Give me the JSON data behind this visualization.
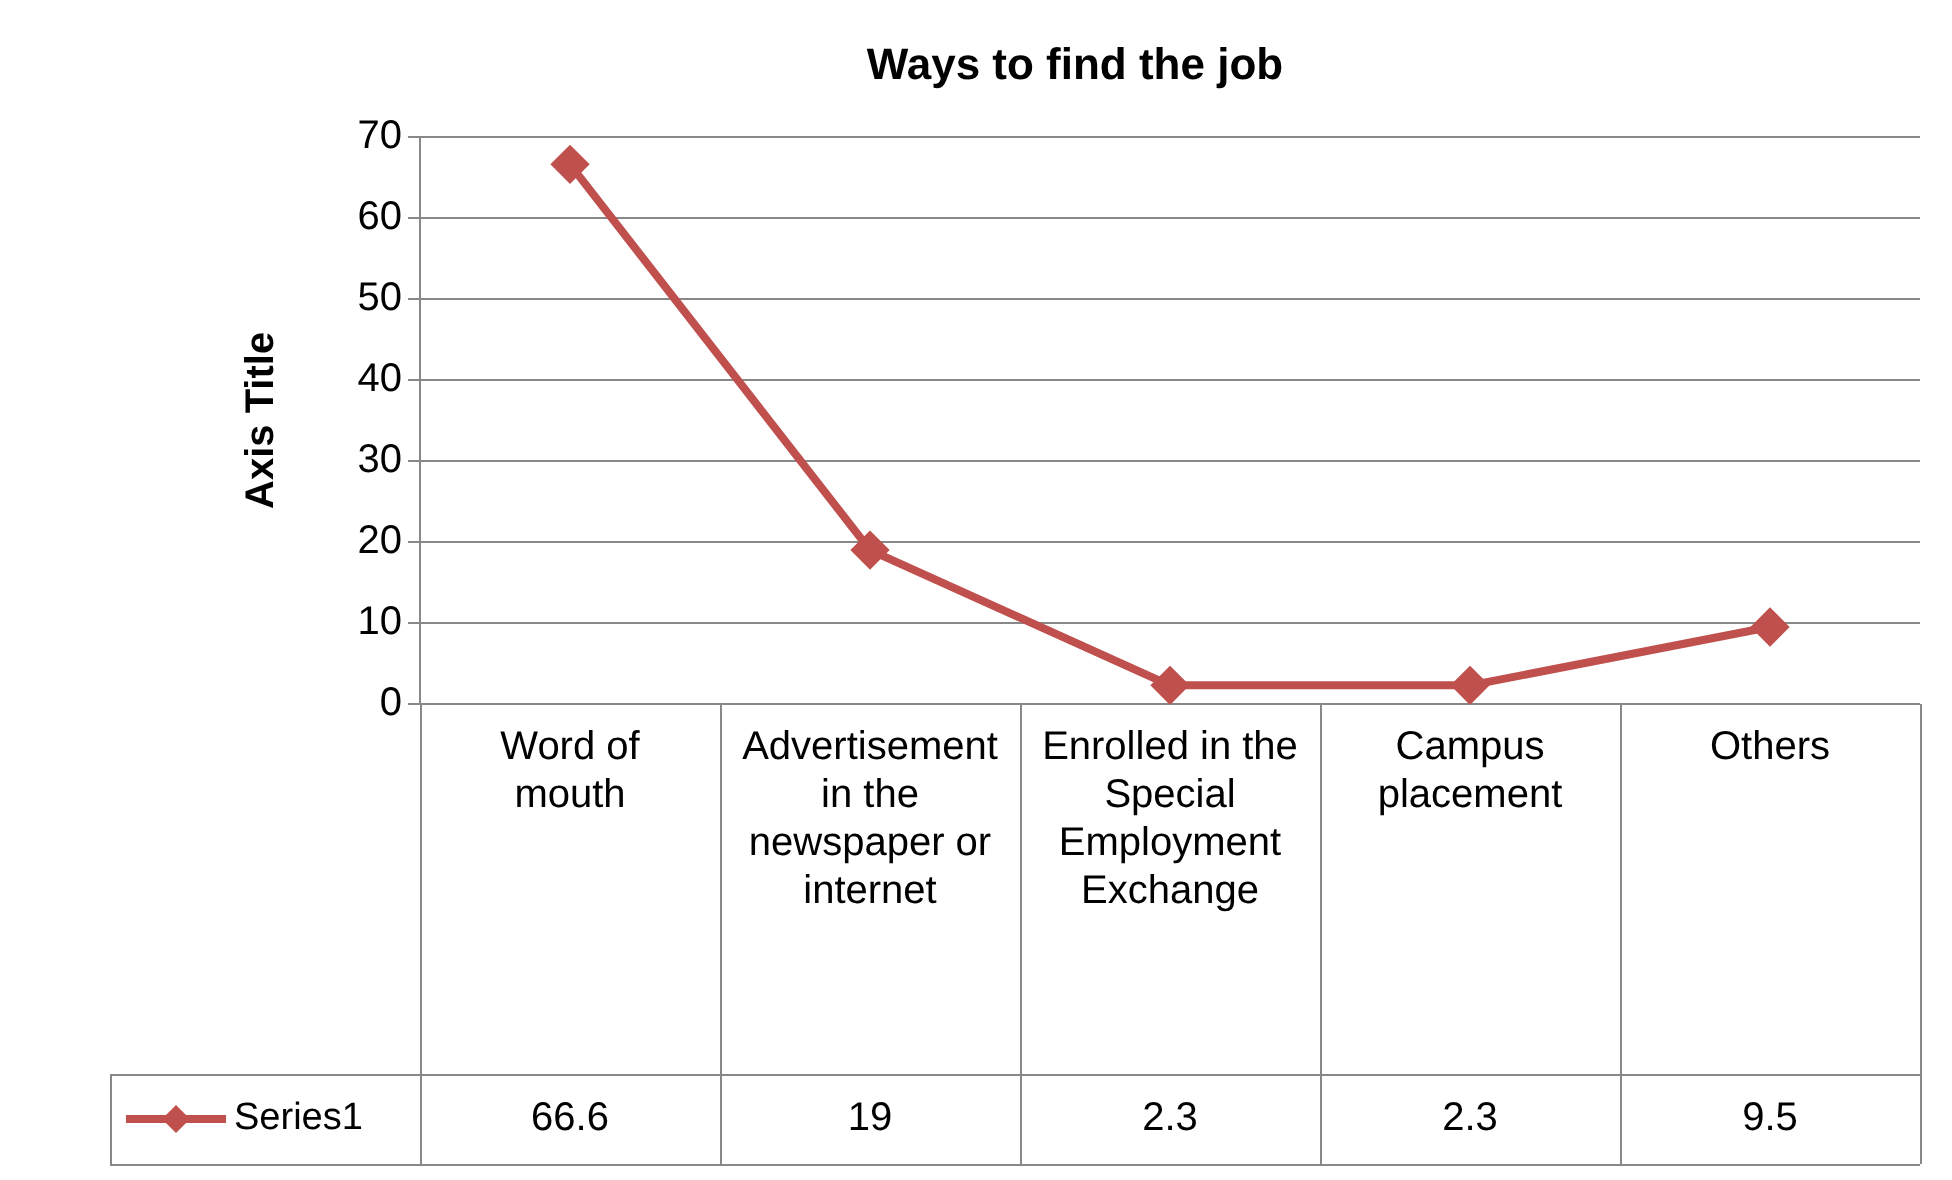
{
  "chart_data": {
    "type": "line",
    "title": "Ways to find the job",
    "ylabel": "Axis Title",
    "categories": [
      "Word of mouth",
      "Advertisement in the newspaper or internet",
      "Enrolled in the Special Employment Exchange",
      "Campus placement",
      "Others"
    ],
    "series": [
      {
        "name": "Series1",
        "color": "#c0504d",
        "values": [
          66.6,
          19,
          2.3,
          2.3,
          9.5
        ]
      }
    ],
    "ylim": [
      0,
      70
    ],
    "yticks": [
      0,
      10,
      20,
      30,
      40,
      50,
      60,
      70
    ],
    "grid": "y",
    "marker": "diamond",
    "line_style": "solid",
    "data_labels": true,
    "legend": "bottom left"
  }
}
